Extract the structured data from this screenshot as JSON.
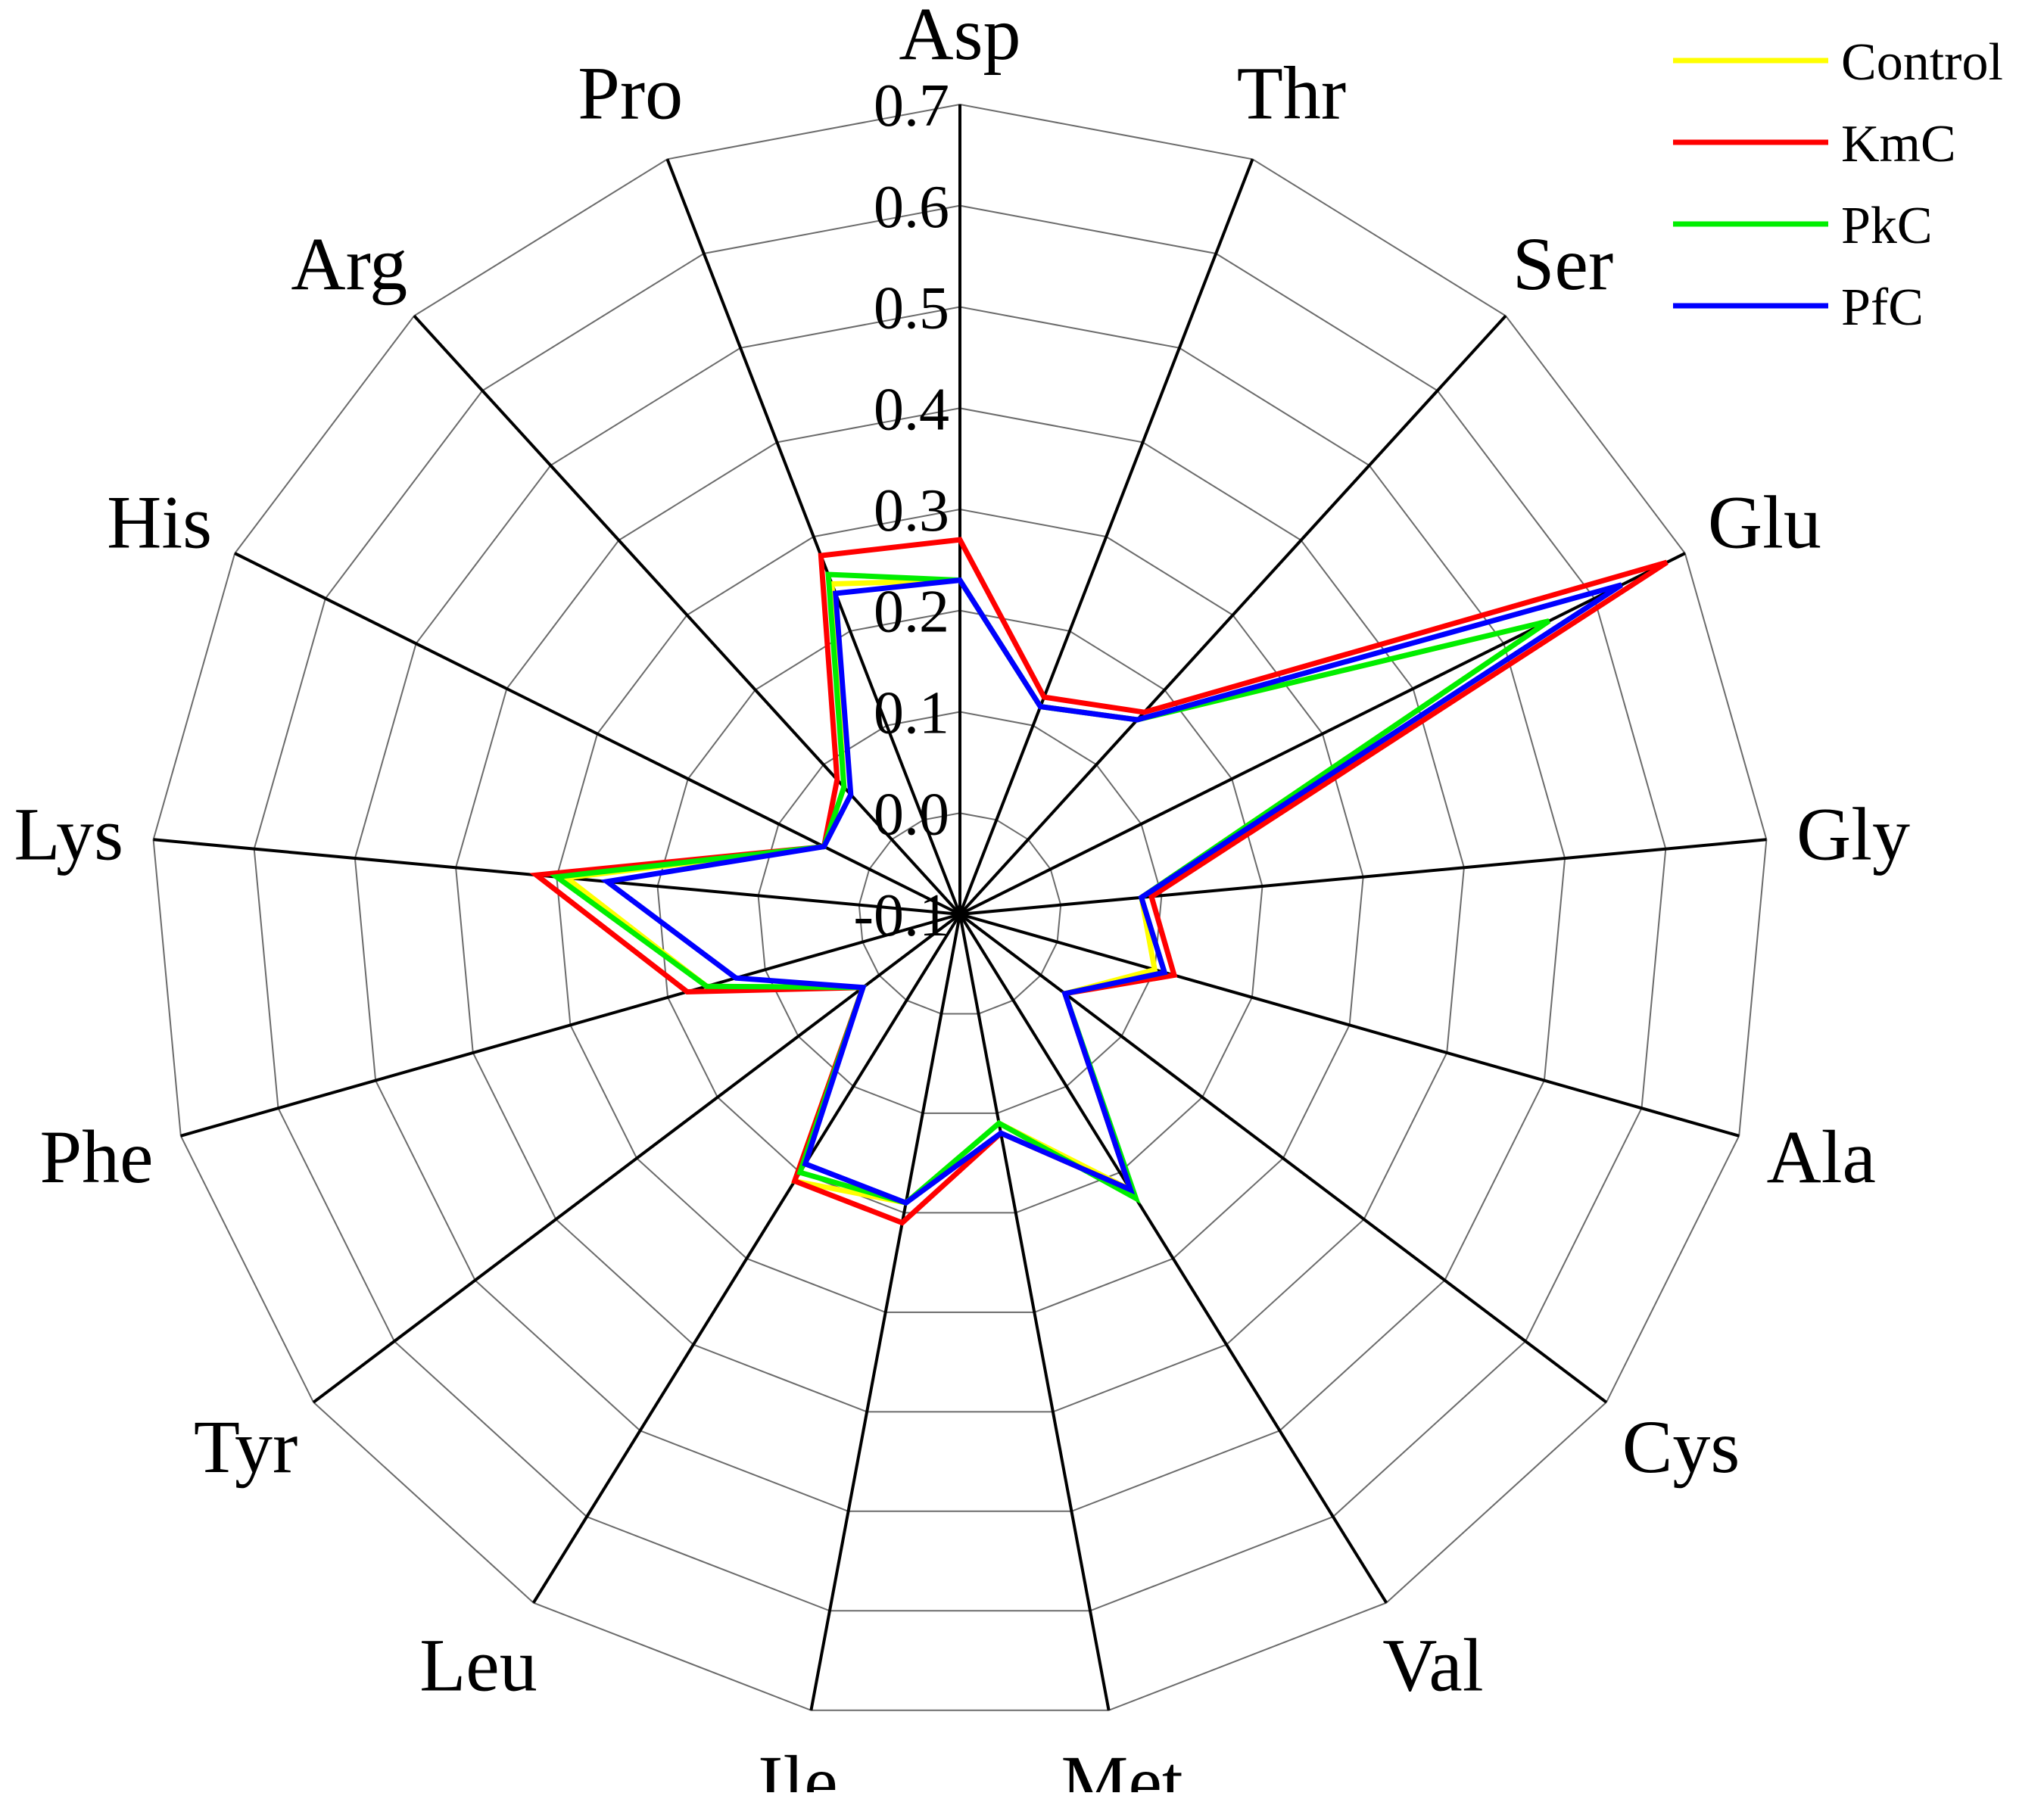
{
  "chart_data": {
    "type": "radar",
    "title": "",
    "categories": [
      "Asp",
      "Thr",
      "Ser",
      "Glu",
      "Gly",
      "Ala",
      "Cys",
      "Val",
      "Met",
      "Ile",
      "Leu",
      "Tyr",
      "Phe",
      "Lys",
      "His",
      "Arg",
      "Pro"
    ],
    "rlim": [
      -0.1,
      0.7
    ],
    "ticks": [
      "0.7",
      "0.6",
      "0.5",
      "0.4",
      "0.3",
      "0.2",
      "0.1",
      "0.0",
      "-0.1"
    ],
    "grid": true,
    "legend_position": "top-right",
    "series": [
      {
        "name": "Control",
        "color": "#ffff00",
        "values": [
          0.23,
          0.12,
          0.16,
          0.55,
          0.08,
          0.1,
          0.03,
          0.22,
          0.11,
          0.19,
          0.21,
          0.02,
          0.16,
          0.29,
          0.05,
          0.07,
          0.25
        ]
      },
      {
        "name": "KmC",
        "color": "#ff0000",
        "values": [
          0.27,
          0.13,
          0.17,
          0.68,
          0.09,
          0.12,
          0.03,
          0.22,
          0.12,
          0.21,
          0.21,
          0.02,
          0.18,
          0.32,
          0.05,
          0.08,
          0.28
        ]
      },
      {
        "name": "PkC",
        "color": "#00ee00",
        "values": [
          0.23,
          0.12,
          0.16,
          0.55,
          0.08,
          0.11,
          0.03,
          0.23,
          0.11,
          0.19,
          0.2,
          0.02,
          0.16,
          0.3,
          0.05,
          0.07,
          0.26
        ]
      },
      {
        "name": "PfC",
        "color": "#0000ff",
        "values": [
          0.23,
          0.12,
          0.16,
          0.63,
          0.08,
          0.11,
          0.03,
          0.22,
          0.12,
          0.19,
          0.19,
          0.02,
          0.13,
          0.25,
          0.05,
          0.06,
          0.24
        ]
      }
    ]
  }
}
